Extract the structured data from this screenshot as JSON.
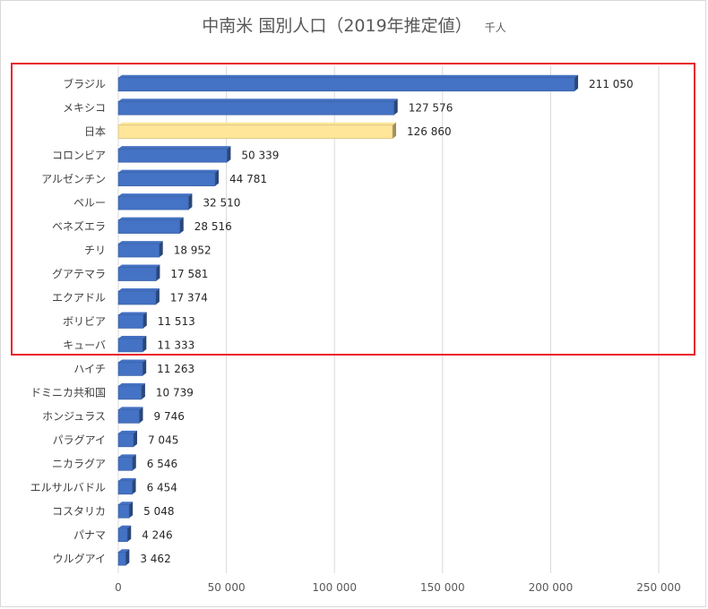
{
  "chart_data": {
    "type": "bar",
    "orientation": "horizontal",
    "title": "中南米 国別人口（2019年推定値）",
    "unit": "千人",
    "categories": [
      "ブラジル",
      "メキシコ",
      "日本",
      "コロンビア",
      "アルゼンチン",
      "ペルー",
      "ベネズエラ",
      "チリ",
      "グアテマラ",
      "エクアドル",
      "ボリビア",
      "キューバ",
      "ハイチ",
      "ドミニカ共和国",
      "ホンジュラス",
      "パラグアイ",
      "ニカラグア",
      "エルサルバドル",
      "コスタリカ",
      "パナマ",
      "ウルグアイ"
    ],
    "values": [
      211050,
      127576,
      126860,
      50339,
      44781,
      32510,
      28516,
      18952,
      17581,
      17374,
      11513,
      11333,
      11263,
      10739,
      9746,
      7045,
      6546,
      6454,
      5048,
      4246,
      3462
    ],
    "value_labels": [
      "211 050",
      "127 576",
      "126 860",
      "50 339",
      "44 781",
      "32 510",
      "28 516",
      "18 952",
      "17 581",
      "17 374",
      "11 513",
      "11 333",
      "11 263",
      "10 739",
      "9 746",
      "7 045",
      "6 546",
      "6 454",
      "5 048",
      "4 246",
      "3 462"
    ],
    "highlight_category": "日本",
    "xlim": [
      0,
      250000
    ],
    "ticks": [
      0,
      50000,
      100000,
      150000,
      200000,
      250000
    ],
    "tick_labels": [
      "0",
      "50 000",
      "100 000",
      "150 000",
      "200 000",
      "250 000"
    ],
    "grid": "vertical",
    "bar_color": "#4472c4",
    "highlight_color": "#ffe699",
    "box_color": "#e8202a",
    "boxed_categories_count": 12
  }
}
